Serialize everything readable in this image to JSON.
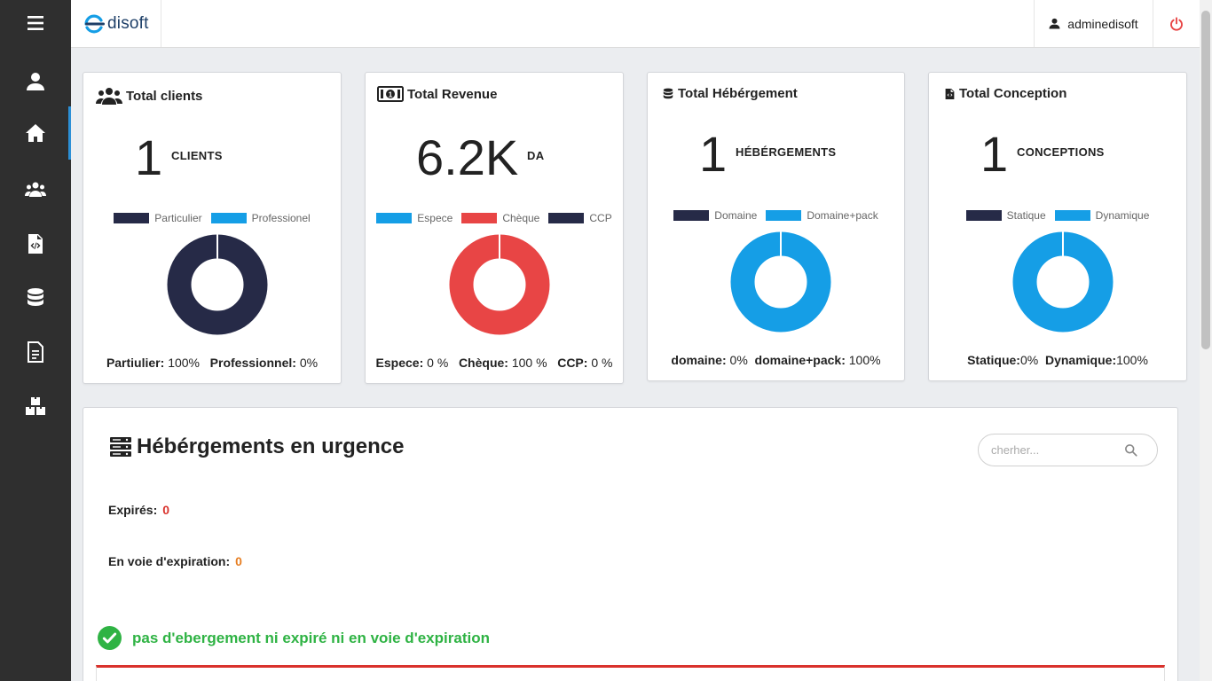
{
  "app": {
    "logo_text": "disoft",
    "user_name": "adminedisoft"
  },
  "colors": {
    "navy": "#262a47",
    "blue": "#159ee6",
    "red": "#e84545",
    "sidebar": "#2f2f2f",
    "success": "#2fb344"
  },
  "sidebar": {
    "items": [
      {
        "icon": "hamburger-menu-icon"
      },
      {
        "icon": "user-icon"
      },
      {
        "icon": "home-icon",
        "active": true
      },
      {
        "icon": "users-icon"
      },
      {
        "icon": "file-code-icon"
      },
      {
        "icon": "database-icon"
      },
      {
        "icon": "document-icon"
      },
      {
        "icon": "boxes-icon"
      }
    ]
  },
  "cards": {
    "clients": {
      "title": "Total clients",
      "value": "1",
      "unit": "CLIENTS",
      "legend": [
        {
          "label": "Particulier",
          "color": "#262a47"
        },
        {
          "label": "Professionel",
          "color": "#159ee6"
        }
      ],
      "stats": [
        {
          "label": "Partiulier:",
          "value": "100%"
        },
        {
          "label": "Professionnel:",
          "value": "0%"
        }
      ]
    },
    "revenue": {
      "title": "Total Revenue",
      "value": "6.2K",
      "unit": "DA",
      "legend": [
        {
          "label": "Espece",
          "color": "#159ee6"
        },
        {
          "label": "Chèque",
          "color": "#e84545"
        },
        {
          "label": "CCP",
          "color": "#262a47"
        }
      ],
      "stats": [
        {
          "label": "Espece:",
          "value": "0 %"
        },
        {
          "label": "Chèque:",
          "value": "100 %"
        },
        {
          "label": "CCP:",
          "value": "0 %"
        }
      ]
    },
    "hebergement": {
      "title": "Total Hébérgement",
      "value": "1",
      "unit": "HÉBÉRGEMENTS",
      "legend": [
        {
          "label": "Domaine",
          "color": "#262a47"
        },
        {
          "label": "Domaine+pack",
          "color": "#159ee6"
        }
      ],
      "stats": [
        {
          "label": "domaine:",
          "value": "0%"
        },
        {
          "label": "domaine+pack:",
          "value": "100%"
        }
      ]
    },
    "conception": {
      "title": "Total Conception",
      "value": "1",
      "unit": "CONCEPTIONS",
      "legend": [
        {
          "label": "Statique",
          "color": "#262a47"
        },
        {
          "label": "Dynamique",
          "color": "#159ee6"
        }
      ],
      "stats": [
        {
          "label": "Statique:",
          "value": "0%"
        },
        {
          "label": "Dynamique:",
          "value": "100%"
        }
      ]
    }
  },
  "chart_data": [
    {
      "type": "pie",
      "categories": [
        "Particulier",
        "Professionel"
      ],
      "values": [
        100,
        0
      ],
      "colors": [
        "#262a47",
        "#159ee6"
      ],
      "title": "",
      "legend": "top"
    },
    {
      "type": "pie",
      "categories": [
        "Espece",
        "Chèque",
        "CCP"
      ],
      "values": [
        0,
        100,
        0
      ],
      "colors": [
        "#159ee6",
        "#e84545",
        "#262a47"
      ],
      "title": "",
      "legend": "top"
    },
    {
      "type": "pie",
      "categories": [
        "Domaine",
        "Domaine+pack"
      ],
      "values": [
        0,
        100
      ],
      "colors": [
        "#262a47",
        "#159ee6"
      ],
      "title": "",
      "legend": "top"
    },
    {
      "type": "pie",
      "categories": [
        "Statique",
        "Dynamique"
      ],
      "values": [
        0,
        100
      ],
      "colors": [
        "#262a47",
        "#159ee6"
      ],
      "title": "",
      "legend": "top"
    }
  ],
  "urgence": {
    "title": "Hébérgements en urgence",
    "search_placeholder": "cherher...",
    "expired_label": "Expirés:",
    "expired_value": "0",
    "expiring_label": "En voie d'expiration:",
    "expiring_value": "0",
    "ok_message": "pas d'ebergement ni expiré ni en voie d'expiration"
  }
}
